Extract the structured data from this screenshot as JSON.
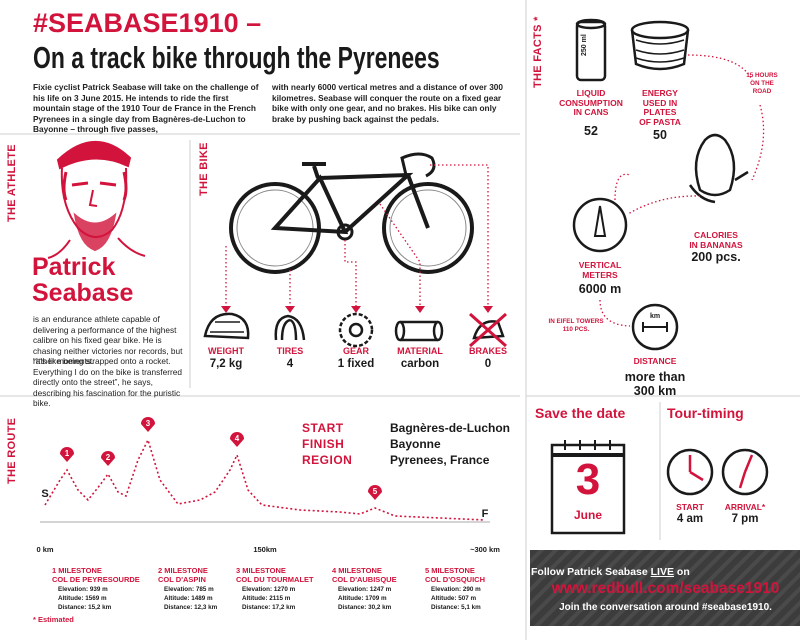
{
  "header": {
    "title": "#SEABASE1910 –",
    "subtitle": "On a track bike through the Pyrenees",
    "intro": [
      "Fixie cyclist Patrick Seabase will take on the challenge of his life on 3 June 2015. He intends to ride the first mountain stage of the 1910 Tour de France in the French Pyrenees in a single day from Bagnères-de-Luchon to Bayonne – through five passes,",
      "with nearly 6000 vertical metres and a distance of over 300 kilometres. Seabase will conquer the route on a fixed gear bike with only one gear, and no brakes. His bike can only brake by pushing back against the pedals."
    ]
  },
  "sections": {
    "facts": "THE FACTS *",
    "athlete": "THE ATHLETE",
    "bike": "THE BIKE",
    "route": "THE ROUTE"
  },
  "athlete": {
    "name": [
      "Patrick",
      "Seabase"
    ],
    "text": [
      "is an endurance athlete capable of delivering a performance of the highest calibre on his fixed gear bike. He is chasing neither victories nor records, but rather moments.",
      "“It's like being strapped onto a rocket. Everything I do on the bike is transferred directly onto the street”, he says, describing his fascination for the puristic bike."
    ]
  },
  "bike": {
    "parts": [
      {
        "label": "WEIGHT",
        "value": "7,2 kg"
      },
      {
        "label": "TIRES",
        "value": "4"
      },
      {
        "label": "GEAR",
        "value": "1 fixed"
      },
      {
        "label": "MATERIAL",
        "value": "carbon"
      },
      {
        "label": "BRAKES",
        "value": "0"
      }
    ]
  },
  "facts": {
    "can_text": "250 ml",
    "distance_icon": "km",
    "items": [
      {
        "label": [
          "LIQUID",
          "CONSUMPTION",
          "IN CANS"
        ],
        "value": "52"
      },
      {
        "label": [
          "ENERGY",
          "USED IN",
          "PLATES",
          "OF PASTA"
        ],
        "value": "50"
      },
      {
        "label": [
          "CALORIES",
          "IN BANANAS"
        ],
        "value": "200 pcs."
      },
      {
        "label": [
          "VERTICAL",
          "METERS"
        ],
        "value": "6000 m"
      },
      {
        "label": [
          "DISTANCE"
        ],
        "value": [
          "more than",
          "300 km"
        ]
      }
    ],
    "notes": [
      [
        "15 HOURS",
        "ON THE",
        "ROAD"
      ],
      [
        "IN EIFEL TOWERS",
        "110 PCS."
      ]
    ]
  },
  "route": {
    "details": [
      {
        "label": "START",
        "value": "Bagnères-de-Luchon"
      },
      {
        "label": "FINISH",
        "value": "Bayonne"
      },
      {
        "label": "REGION",
        "value": "Pyrenees, France"
      }
    ],
    "markers": [
      "S",
      "1",
      "2",
      "3",
      "4",
      "5",
      "F"
    ],
    "axis": [
      "0 km",
      "150km",
      "~300 km"
    ],
    "milestones": [
      {
        "title": "1 MILESTONE",
        "name": "COL DE PEYRESOURDE",
        "items": [
          "Elevation: 939 m",
          "Altitude: 1569 m",
          "Distance: 15,2 km"
        ]
      },
      {
        "title": "2 MILESTONE",
        "name": "COL D'ASPIN",
        "items": [
          "Elevation: 785 m",
          "Altitude: 1489 m",
          "Distance: 12,3 km"
        ]
      },
      {
        "title": "3 MILESTONE",
        "name": "COL DU TOURMALET",
        "items": [
          "Elevation: 1270 m",
          "Altitude: 2115 m",
          "Distance: 17,2 km"
        ]
      },
      {
        "title": "4 MILESTONE",
        "name": "COL D'AUBISQUE",
        "items": [
          "Elevation: 1247 m",
          "Altitude: 1709 m",
          "Distance: 30,2 km"
        ]
      },
      {
        "title": "5 MILESTONE",
        "name": "COL D'OSQUICH",
        "items": [
          "Elevation: 290 m",
          "Altitude: 507 m",
          "Distance: 5,1 km"
        ]
      }
    ],
    "footnote": "* Estimated"
  },
  "date": {
    "title": "Save the date",
    "day": "3",
    "month": "June"
  },
  "timing": {
    "title": "Tour-timing",
    "clocks": [
      {
        "label": "START",
        "value": "4 am"
      },
      {
        "label": "ARRIVAL*",
        "value": "7 pm"
      }
    ]
  },
  "follow": {
    "prefix": "Follow Patrick Seabase ",
    "live": "LIVE",
    "suffix": " on",
    "url": "www.redbull.com/seabase1910",
    "join": "Join the conversation around #seabase1910."
  }
}
